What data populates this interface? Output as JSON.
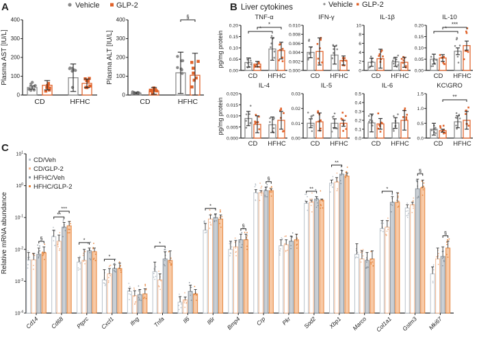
{
  "colors": {
    "vehicle": "#8a8a8a",
    "glp2": "#e0622a",
    "cd_veh": "#b9c1c9",
    "cd_glp2": "#f1b48c",
    "hfhc_veh_fill": "#c9cfd5",
    "hfhc_veh_line": "#8a939b",
    "hfhc_glp2_fill": "#f8caa6",
    "hfhc_glp2_line": "#e5843c"
  },
  "panel_a": {
    "label": "A",
    "legend": [
      {
        "name": "Vehicle",
        "marker": "circle"
      },
      {
        "name": "GLP-2",
        "marker": "square"
      }
    ],
    "categories": [
      "CD",
      "HFHC"
    ]
  },
  "panel_b": {
    "label": "B",
    "title": "Liver cytokines",
    "legend": [
      {
        "name": "Vehicle",
        "marker": "circle"
      },
      {
        "name": "GLP-2",
        "marker": "square"
      }
    ],
    "ylabel": "pg/mg protein",
    "categories": [
      "CD",
      "HFHC"
    ]
  },
  "panel_c": {
    "label": "C",
    "ylabel": "Relative mRNA abundance",
    "legend": [
      "CD/Veh",
      "CD/GLP-2",
      "HFHC/Veh",
      "HFHC/GLP-2"
    ]
  },
  "chart_data": [
    {
      "id": "ast",
      "type": "bar",
      "title": "",
      "ylabel": "Plasma AST [IU/L]",
      "categories": [
        "CD",
        "HFHC"
      ],
      "groups": [
        "Vehicle",
        "GLP-2"
      ],
      "means": [
        40,
        52,
        92,
        62
      ],
      "upper": [
        48,
        77,
        165,
        85
      ],
      "ylim": [
        0,
        400
      ],
      "yticks": [
        0,
        100,
        200,
        300,
        400
      ],
      "significance": []
    },
    {
      "id": "alt",
      "type": "bar",
      "title": "",
      "ylabel": "Plasma ALT [IU/L]",
      "categories": [
        "CD",
        "HFHC"
      ],
      "groups": [
        "Vehicle",
        "GLP-2"
      ],
      "means": [
        10,
        22,
        118,
        105
      ],
      "upper": [
        15,
        40,
        228,
        222
      ],
      "ylim": [
        0,
        400
      ],
      "yticks": [
        0,
        100,
        200,
        300,
        400
      ],
      "significance": [
        {
          "from": 2,
          "to": 3,
          "label": "§"
        }
      ]
    },
    {
      "id": "tnf",
      "type": "bar",
      "title": "TNF-α",
      "means": [
        0.035,
        0.028,
        0.095,
        0.088
      ],
      "upper": [
        0.055,
        0.04,
        0.145,
        0.125
      ],
      "ylim": [
        0,
        0.2
      ],
      "yticks": [
        "0.00",
        "0.05",
        "0.10",
        "0.15",
        "0.20"
      ],
      "significance": [
        {
          "from": 0,
          "to": 2,
          "label": "*"
        },
        {
          "from": 1,
          "to": 3,
          "label": "*"
        }
      ]
    },
    {
      "id": "ifng",
      "type": "bar",
      "title": "IFN-γ",
      "means": [
        0.004,
        0.0042,
        0.0034,
        0.0022
      ],
      "upper": [
        0.0052,
        0.0072,
        0.0054,
        0.0032
      ],
      "ylim": [
        0,
        0.01
      ],
      "yticks": [
        "0.000",
        "0.002",
        "0.004",
        "0.006",
        "0.008",
        "0.010"
      ],
      "significance": []
    },
    {
      "id": "il1b",
      "type": "bar",
      "title": "IL-1β",
      "means": [
        1.8,
        2.6,
        1.9,
        1.8
      ],
      "upper": [
        2.7,
        4.7,
        2.9,
        2.9
      ],
      "ylim": [
        0,
        10
      ],
      "yticks": [
        "0",
        "2",
        "4",
        "6",
        "8",
        "10"
      ],
      "significance": []
    },
    {
      "id": "il10",
      "type": "bar",
      "title": "IL-10",
      "means": [
        0.05,
        0.055,
        0.085,
        0.11
      ],
      "upper": [
        0.072,
        0.07,
        0.1,
        0.13
      ],
      "ylim": [
        0,
        0.2
      ],
      "yticks": [
        "0.00",
        "0.05",
        "0.10",
        "0.15",
        "0.20"
      ],
      "significance": [
        {
          "from": 0,
          "to": 2,
          "label": "*"
        },
        {
          "from": 1,
          "to": 3,
          "label": "***"
        }
      ]
    },
    {
      "id": "il4",
      "type": "bar",
      "title": "IL-4",
      "means": [
        0.0088,
        0.0062,
        0.006,
        0.008
      ],
      "upper": [
        0.012,
        0.01,
        0.0095,
        0.012
      ],
      "ylim": [
        0,
        0.02
      ],
      "yticks": [
        "0.000",
        "0.005",
        "0.010",
        "0.015",
        "0.020"
      ],
      "significance": []
    },
    {
      "id": "il5",
      "type": "bar",
      "title": "IL-5",
      "means": [
        0.01,
        0.011,
        0.01,
        0.01
      ],
      "upper": [
        0.013,
        0.017,
        0.013,
        0.012
      ],
      "ylim": [
        0,
        0.03
      ],
      "yticks": [
        "0.00",
        "0.01",
        "0.02",
        "0.03"
      ],
      "significance": []
    },
    {
      "id": "il6",
      "type": "bar",
      "title": "IL-6",
      "means": [
        0.17,
        0.16,
        0.17,
        0.2
      ],
      "upper": [
        0.27,
        0.22,
        0.23,
        0.31
      ],
      "ylim": [
        0,
        0.5
      ],
      "yticks": [
        "0.0",
        "0.1",
        "0.2",
        "0.3",
        "0.4",
        "0.5"
      ],
      "significance": []
    },
    {
      "id": "kcgro",
      "type": "bar",
      "title": "KC\\GRO",
      "means": [
        0.3,
        0.25,
        0.55,
        0.6
      ],
      "upper": [
        0.5,
        0.3,
        0.75,
        0.9
      ],
      "ylim": [
        0,
        1.5
      ],
      "yticks": [
        "0.0",
        "0.5",
        "1.0",
        "1.5"
      ],
      "significance": [
        {
          "from": 1,
          "to": 3,
          "label": "**"
        }
      ]
    },
    {
      "id": "mrna",
      "type": "bar",
      "yscale": "log",
      "ylim": [
        0.0001,
        10
      ],
      "ytick_exponents": [
        -4,
        -3,
        -2,
        -1,
        0,
        1
      ],
      "ytick_base": "10",
      "series": [
        "CD/Veh",
        "CD/GLP-2",
        "HFHC/Veh",
        "HFHC/GLP-2"
      ],
      "genes": [
        {
          "name": "Cd14",
          "means": [
            0.0047,
            0.0047,
            0.007,
            0.0078
          ],
          "upper": [
            0.008,
            0.0075,
            0.011,
            0.012
          ],
          "significance": [
            {
              "from": 2,
              "to": 3,
              "label": "§"
            }
          ]
        },
        {
          "name": "Cd68",
          "means": [
            0.025,
            0.018,
            0.05,
            0.055
          ],
          "upper": [
            0.04,
            0.028,
            0.07,
            0.075
          ],
          "significance": [
            {
              "from": 0,
              "to": 2,
              "label": "**"
            },
            {
              "from": 1,
              "to": 3,
              "label": "***"
            }
          ]
        },
        {
          "name": "Ptprc",
          "means": [
            0.004,
            0.0045,
            0.009,
            0.0085
          ],
          "upper": [
            0.0055,
            0.01,
            0.011,
            0.011
          ],
          "significance": [
            {
              "from": 0,
              "to": 2,
              "label": "*"
            }
          ]
        },
        {
          "name": "Cxcl1",
          "means": [
            0.0011,
            0.0017,
            0.0025,
            0.0025
          ],
          "upper": [
            0.0023,
            0.0025,
            0.0033,
            0.0037
          ],
          "significance": [
            {
              "from": 0,
              "to": 2,
              "label": "*"
            }
          ]
        },
        {
          "name": "Ifng",
          "means": [
            0.00048,
            0.00035,
            0.00038,
            0.0004
          ],
          "upper": [
            0.0006,
            0.0005,
            0.00055,
            0.00058
          ],
          "significance": []
        },
        {
          "name": "Tnfa",
          "means": [
            0.002,
            0.0011,
            0.005,
            0.0045
          ],
          "upper": [
            0.004,
            0.0017,
            0.0085,
            0.009
          ],
          "significance": [
            {
              "from": 0,
              "to": 2,
              "label": "*"
            }
          ]
        },
        {
          "name": "Il6",
          "means": [
            0.00022,
            0.00026,
            0.00048,
            0.0004
          ],
          "upper": [
            0.00033,
            0.00032,
            0.00075,
            0.00055
          ],
          "significance": []
        },
        {
          "name": "Il6r",
          "means": [
            0.04,
            0.09,
            0.1,
            0.09
          ],
          "upper": [
            0.065,
            0.12,
            0.13,
            0.12
          ],
          "significance": [
            {
              "from": 0,
              "to": 2,
              "label": "*"
            }
          ]
        },
        {
          "name": "Bmp4",
          "means": [
            0.01,
            0.012,
            0.02,
            0.02
          ],
          "upper": [
            0.018,
            0.019,
            0.03,
            0.03
          ],
          "significance": [
            {
              "from": 2,
              "to": 3,
              "label": "§"
            }
          ]
        },
        {
          "name": "Crp",
          "means": [
            0.6,
            0.6,
            0.7,
            0.7
          ],
          "upper": [
            0.75,
            0.7,
            0.9,
            0.8
          ],
          "significance": [
            {
              "from": 2,
              "to": 3,
              "label": "§"
            }
          ]
        },
        {
          "name": "Pkr",
          "means": [
            0.013,
            0.014,
            0.018,
            0.02
          ],
          "upper": [
            0.02,
            0.02,
            0.026,
            0.03
          ],
          "significance": []
        },
        {
          "name": "Sod2",
          "means": [
            0.28,
            0.3,
            0.38,
            0.35
          ],
          "upper": [
            0.32,
            0.35,
            0.45,
            0.38
          ],
          "significance": [
            {
              "from": 0,
              "to": 2,
              "label": "**"
            }
          ]
        },
        {
          "name": "Xbp1",
          "means": [
            1.2,
            1.3,
            2.3,
            2.0
          ],
          "upper": [
            1.5,
            1.8,
            3.0,
            2.5
          ],
          "significance": [
            {
              "from": 0,
              "to": 2,
              "label": "**"
            }
          ]
        },
        {
          "name": "Marco",
          "means": [
            0.007,
            0.005,
            0.0045,
            0.005
          ],
          "upper": [
            0.015,
            0.009,
            0.008,
            0.009
          ],
          "significance": []
        },
        {
          "name": "Col1a1",
          "means": [
            0.045,
            0.05,
            0.3,
            0.3
          ],
          "upper": [
            0.08,
            0.08,
            0.45,
            0.6
          ],
          "significance": [
            {
              "from": 0,
              "to": 2,
              "label": "*"
            }
          ]
        },
        {
          "name": "Gstm3",
          "means": [
            0.2,
            0.25,
            0.8,
            0.85
          ],
          "upper": [
            0.25,
            0.3,
            1.6,
            1.5
          ],
          "significance": [
            {
              "from": 2,
              "to": 3,
              "label": "§"
            }
          ]
        },
        {
          "name": "Mki67",
          "means": [
            0.0017,
            0.005,
            0.006,
            0.011
          ],
          "upper": [
            0.0028,
            0.011,
            0.012,
            0.018
          ],
          "significance": [
            {
              "from": 2,
              "to": 3,
              "label": "§"
            }
          ]
        }
      ]
    }
  ]
}
